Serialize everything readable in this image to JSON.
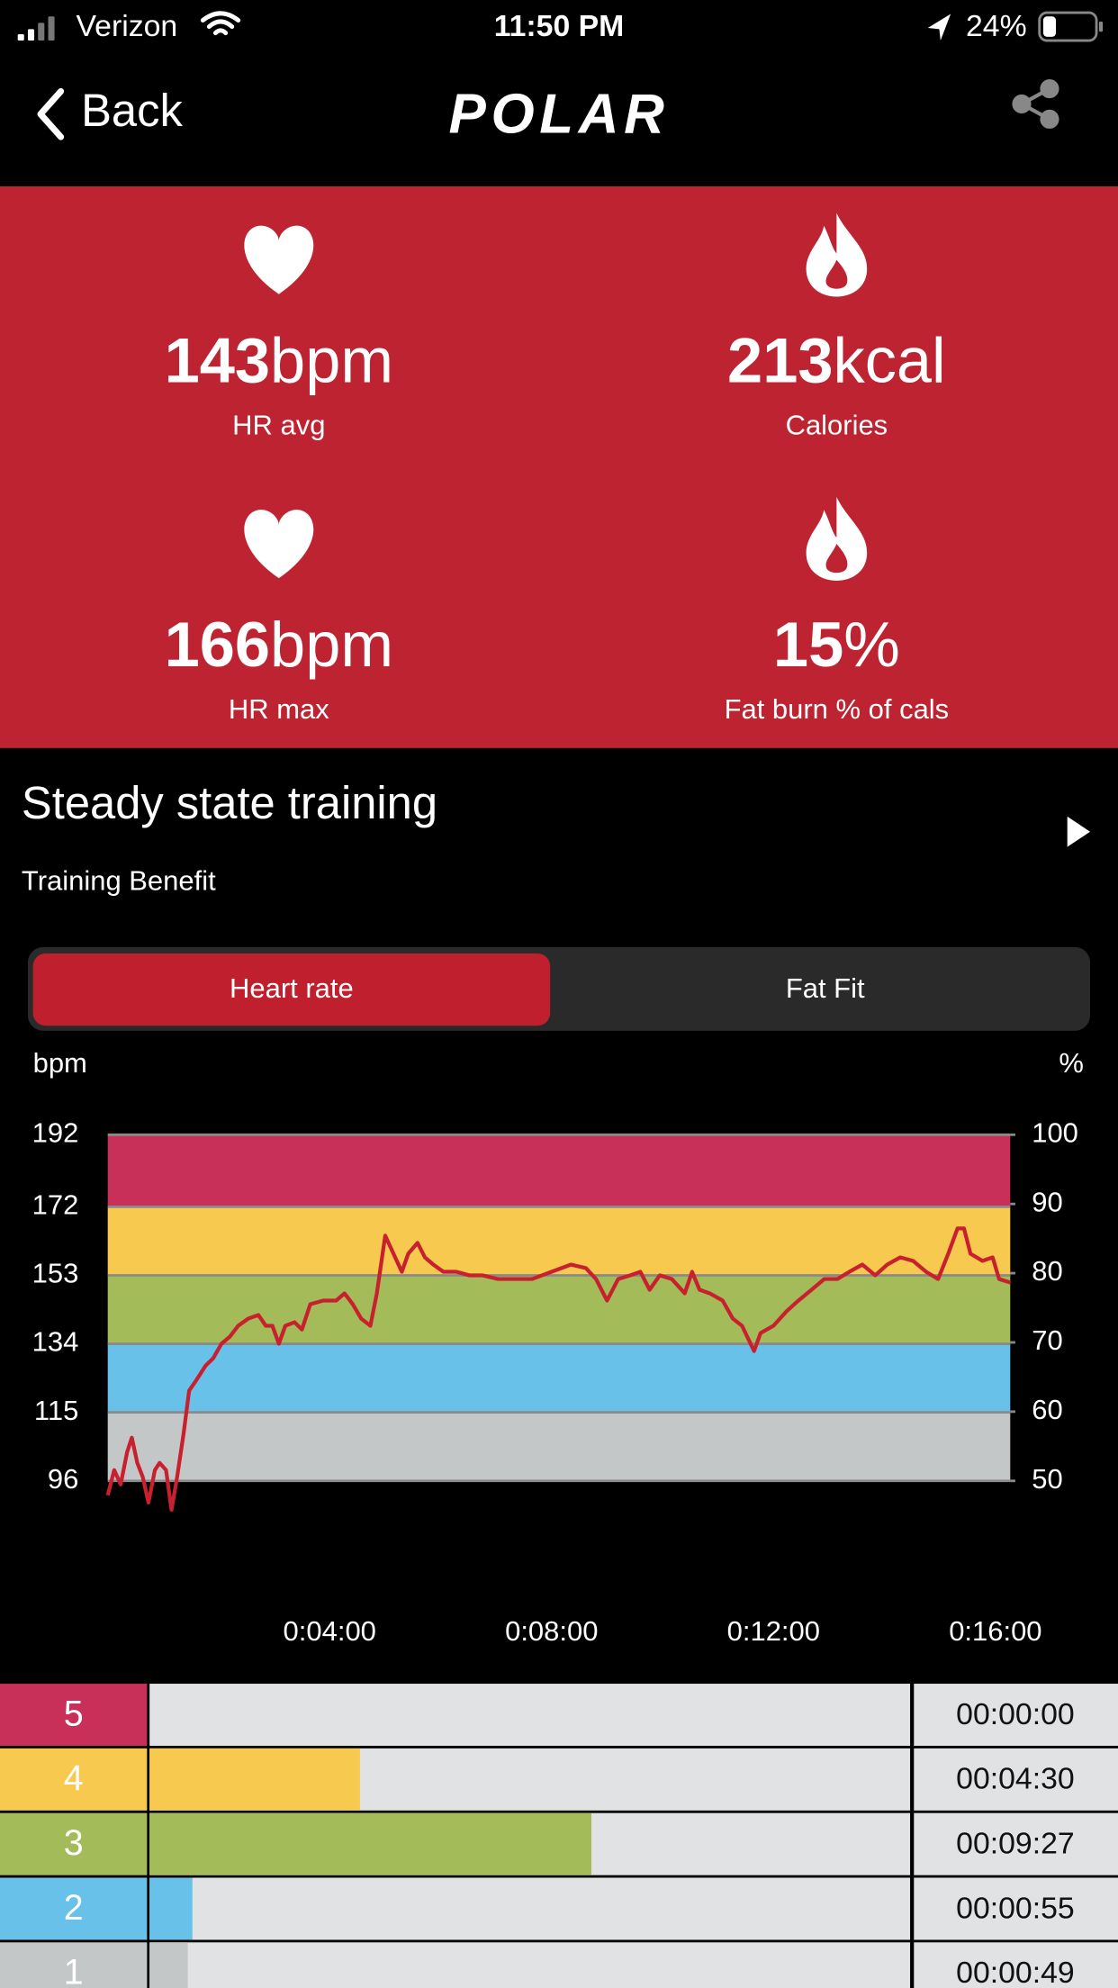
{
  "status_bar": {
    "carrier": "Verizon",
    "time": "11:50 PM",
    "battery": "24%"
  },
  "header": {
    "back": "Back",
    "logo": "POLAR"
  },
  "stats": [
    {
      "value": 143,
      "unit": "bpm",
      "label": "HR avg"
    },
    {
      "value": 213,
      "unit": "kcal",
      "label": "Calories"
    },
    {
      "value": 166,
      "unit": "bpm",
      "label": "HR max"
    },
    {
      "value": 15,
      "unit": "%",
      "label": "Fat burn % of cals"
    }
  ],
  "training": {
    "title": "Steady state training",
    "subtitle": "Training Benefit"
  },
  "tabs": [
    "Heart rate",
    "Fat Fit"
  ],
  "chart_data": [
    {
      "type": "line",
      "y_label": "bpm",
      "y2_label": "%",
      "color": "#c8202f",
      "zone_colors": [
        "#c8305a",
        "#f7c94f",
        "#a3bb59",
        "#68c1e8",
        "#c4c7c8"
      ],
      "x": [
        0,
        7,
        14,
        21,
        26,
        32,
        38,
        44,
        51,
        56,
        63,
        69,
        75,
        82,
        88,
        96,
        106,
        114,
        123,
        132,
        141,
        152,
        163,
        171,
        178,
        185,
        192,
        202,
        210,
        219,
        233,
        247,
        256,
        265,
        274,
        284,
        291,
        300,
        309,
        318,
        325,
        335,
        343,
        352,
        363,
        377,
        391,
        405,
        422,
        439,
        459,
        480,
        501,
        517,
        528,
        540,
        552,
        565,
        576,
        586,
        597,
        610,
        624,
        632,
        640,
        651,
        665,
        676,
        686,
        699,
        706,
        720,
        734,
        747,
        761,
        775,
        789,
        802,
        816,
        830,
        843,
        857,
        871,
        885,
        898,
        909,
        919,
        926,
        933,
        946,
        957,
        964,
        976
      ],
      "values": [
        92,
        99,
        95,
        104,
        108,
        101,
        97,
        90,
        99,
        101,
        99,
        88,
        97,
        109,
        121,
        124,
        128,
        130,
        134,
        136,
        139,
        141,
        142,
        139,
        139,
        134,
        139,
        140,
        138,
        145,
        146,
        146,
        148,
        145,
        141,
        139,
        148,
        164,
        159,
        154,
        159,
        162,
        158,
        156,
        154,
        154,
        153,
        153,
        152,
        152,
        152,
        154,
        156,
        155,
        152,
        146,
        152,
        153,
        154,
        149,
        153,
        152,
        148,
        154,
        149,
        148,
        146,
        141,
        139,
        132,
        137,
        139,
        143,
        146,
        149,
        152,
        152,
        154,
        156,
        153,
        156,
        158,
        157,
        154,
        152,
        159,
        166,
        166,
        159,
        157,
        158,
        152,
        151
      ],
      "xlim": [
        0,
        976
      ],
      "xticks": [
        {
          "value": 240,
          "label": "0:04:00"
        },
        {
          "value": 480,
          "label": "0:08:00"
        },
        {
          "value": 720,
          "label": "0:12:00"
        },
        {
          "value": 960,
          "label": "0:16:00"
        }
      ],
      "ylim": [
        96,
        192
      ],
      "yticks": [
        192,
        172,
        153,
        134,
        115,
        96
      ],
      "y2lim": [
        50,
        100
      ],
      "y2ticks": [
        100,
        90,
        80,
        70,
        60,
        50
      ],
      "grid": true
    },
    {
      "type": "hbar",
      "categories": [
        "5",
        "4",
        "3",
        "2",
        "1"
      ],
      "values": [
        0,
        270,
        567,
        55,
        49
      ],
      "value_labels": [
        "00:00:00",
        "00:04:30",
        "00:09:27",
        "00:00:55",
        "00:00:49"
      ],
      "colors": [
        "#c8305a",
        "#f7c94f",
        "#a3bb59",
        "#68c1e8",
        "#c4c7c8"
      ],
      "xlim": [
        0,
        976
      ]
    }
  ]
}
